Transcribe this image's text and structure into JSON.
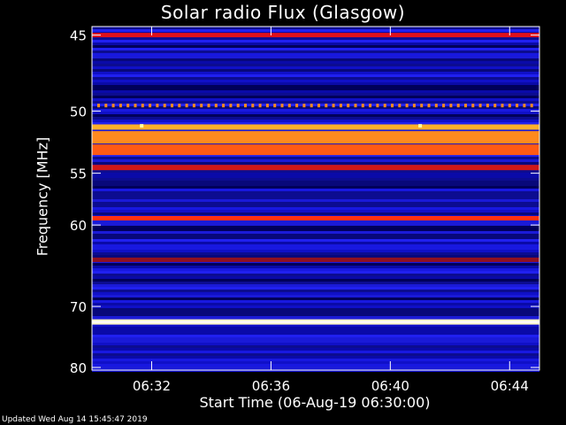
{
  "chart_data": {
    "type": "heatmap",
    "title": "Solar radio Flux (Glasgow)",
    "xlabel": "Start Time (06-Aug-19 06:30:00)",
    "ylabel": "Frequency [MHz]",
    "x_start": "06:30:00",
    "x_end": "06:45:00",
    "xticks": [
      "06:32",
      "06:36",
      "06:40",
      "06:44"
    ],
    "ylim": [
      80.5,
      44.5
    ],
    "yticks": [
      45,
      50,
      55,
      60,
      70,
      80
    ],
    "y_scale": "reciprocal",
    "colormap": "blue-red-yellow-white",
    "background_level": "low (blue)",
    "features": [
      {
        "freq_mhz": 45.0,
        "level": "high (red)"
      },
      {
        "freq_mhz": 49.6,
        "level": "dotted interference (orange)"
      },
      {
        "freq_mhz": 51.2,
        "level": "high (orange/yellow)"
      },
      {
        "freq_mhz": 52.0,
        "level": "high (orange)"
      },
      {
        "freq_mhz": 53.0,
        "level": "medium-high (orange-red)"
      },
      {
        "freq_mhz": 54.5,
        "level": "medium (red)"
      },
      {
        "freq_mhz": 59.3,
        "level": "high (red)"
      },
      {
        "freq_mhz": 63.9,
        "level": "medium (dark red)"
      },
      {
        "freq_mhz": 72.3,
        "level": "very high (white/yellow)"
      }
    ],
    "spots": [
      {
        "time": "06:31:40",
        "freq_mhz": 51.1
      },
      {
        "time": "06:41:00",
        "freq_mhz": 51.1
      }
    ]
  },
  "footer": {
    "updated": "Updated Wed Aug 14 15:45:47 2019"
  }
}
